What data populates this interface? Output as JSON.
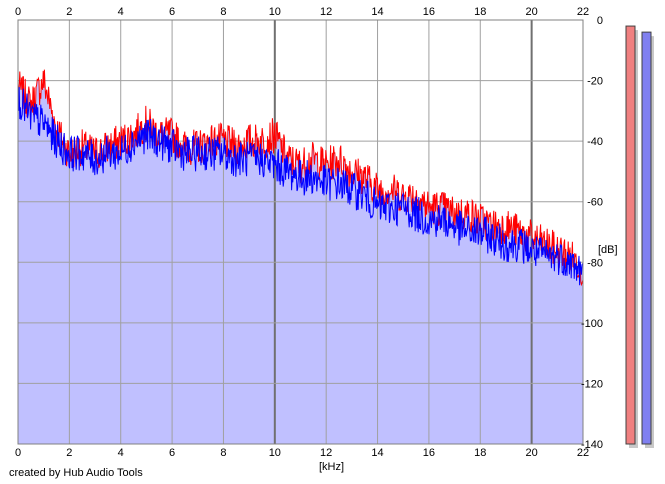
{
  "footer": {
    "credit": "created by Hub Audio Tools"
  },
  "colors": {
    "background": "#ffffff",
    "plot_fill": "#c0c0ff",
    "grid": "#a0a0a0",
    "grid_major": "#707070",
    "channel_left": "#ff0000",
    "channel_right": "#0000ff",
    "meter_left": "#f08080",
    "meter_right": "#8080f0",
    "meter_shadow": "#c8c8c8"
  },
  "meters": {
    "left_level_db": -2,
    "right_level_db": -4,
    "range_db": [
      -140,
      0
    ]
  },
  "chart_data": {
    "type": "line",
    "title": "",
    "xlabel": "[kHz]",
    "ylabel": "[dB]",
    "xlim": [
      0,
      22
    ],
    "ylim": [
      -140,
      0
    ],
    "xticks": [
      "0",
      "2",
      "4",
      "6",
      "8",
      "10",
      "12",
      "14",
      "16",
      "18",
      "20",
      "22"
    ],
    "yticks": [
      "0",
      "-20",
      "-40",
      "-60",
      "-80",
      "-100",
      "-120",
      "-140"
    ],
    "grid": true,
    "legend": "none",
    "x": [
      0,
      0.5,
      1,
      1.5,
      2,
      2.5,
      3,
      3.5,
      4,
      4.5,
      5,
      5.5,
      6,
      6.5,
      7,
      7.5,
      8,
      8.5,
      9,
      9.5,
      10,
      10.5,
      11,
      11.5,
      12,
      12.5,
      13,
      13.5,
      14,
      14.5,
      15,
      15.5,
      16,
      16.5,
      17,
      17.5,
      18,
      18.5,
      19,
      19.5,
      20,
      20.5,
      21,
      21.5,
      22
    ],
    "series": [
      {
        "channel": "left",
        "values": [
          -22,
          -28,
          -20,
          -36,
          -44,
          -42,
          -44,
          -42,
          -40,
          -38,
          -34,
          -38,
          -38,
          -42,
          -42,
          -40,
          -40,
          -42,
          -40,
          -40,
          -38,
          -46,
          -48,
          -46,
          -48,
          -46,
          -50,
          -52,
          -56,
          -56,
          -58,
          -58,
          -62,
          -62,
          -64,
          -64,
          -66,
          -68,
          -68,
          -70,
          -72,
          -74,
          -76,
          -78,
          -82
        ]
      },
      {
        "channel": "right",
        "values": [
          -26,
          -32,
          -34,
          -40,
          -44,
          -44,
          -46,
          -44,
          -44,
          -40,
          -38,
          -40,
          -42,
          -44,
          -44,
          -44,
          -44,
          -46,
          -46,
          -46,
          -48,
          -50,
          -52,
          -52,
          -54,
          -54,
          -56,
          -58,
          -62,
          -62,
          -62,
          -64,
          -66,
          -66,
          -68,
          -70,
          -70,
          -72,
          -74,
          -74,
          -76,
          -78,
          -78,
          -80,
          -84
        ]
      }
    ]
  }
}
